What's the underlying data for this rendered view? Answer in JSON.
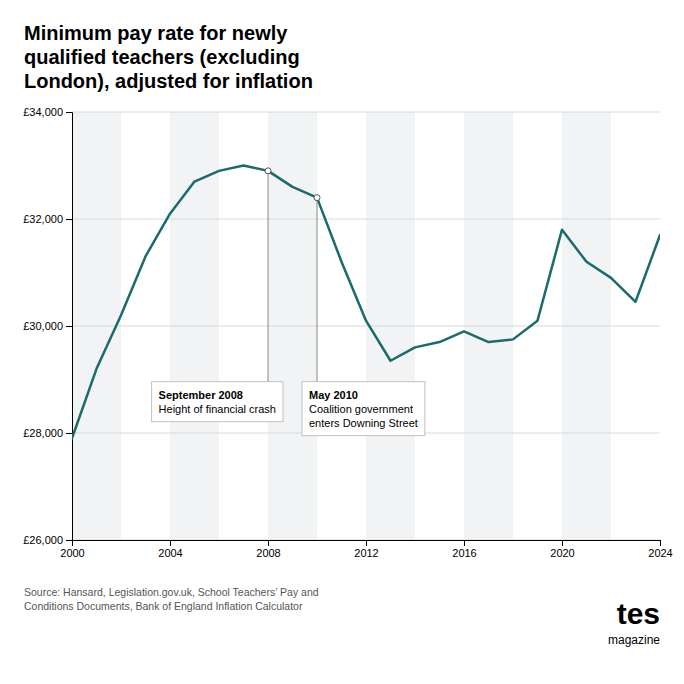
{
  "chart_data": {
    "type": "line",
    "title": "Minimum pay rate for newly\nqualified teachers (excluding\nLondon), adjusted for inflation",
    "source": "Source: Hansard, Legislation.gov.uk, School Teachers’ Pay and\nConditions Documents, Bank of England Inflation Calculator",
    "logo": [
      "tes",
      "magazine"
    ],
    "x": [
      2000,
      2001,
      2002,
      2003,
      2004,
      2005,
      2006,
      2007,
      2008,
      2009,
      2010,
      2011,
      2012,
      2013,
      2014,
      2015,
      2016,
      2017,
      2018,
      2019,
      2020,
      2021,
      2022,
      2023,
      2024
    ],
    "values": [
      27900,
      29200,
      30200,
      31300,
      32100,
      32700,
      32900,
      33000,
      32900,
      32600,
      32400,
      31200,
      30100,
      29350,
      29600,
      29700,
      29900,
      29700,
      29750,
      30100,
      31800,
      31200,
      30900,
      30450,
      31700
    ],
    "color": "#1a6b6b",
    "xlim": [
      2000,
      2024
    ],
    "xticks": [
      2000,
      2004,
      2008,
      2012,
      2016,
      2020,
      2024
    ],
    "ylim": [
      26000,
      34000
    ],
    "yticks": [
      {
        "value": 26000,
        "label": "£26,000"
      },
      {
        "value": 28000,
        "label": "£28,000"
      },
      {
        "value": 30000,
        "label": "£30,000"
      },
      {
        "value": 32000,
        "label": "£32,000"
      },
      {
        "value": 34000,
        "label": "£34,000"
      }
    ],
    "grid": true,
    "annotations": [
      {
        "title": "September 2008",
        "text": "Height of financial crash",
        "x": 2008,
        "y": 32900
      },
      {
        "title": "May 2010",
        "text": "Coalition government\nenters Downing Street",
        "x": 2010,
        "y": 32400
      }
    ]
  }
}
